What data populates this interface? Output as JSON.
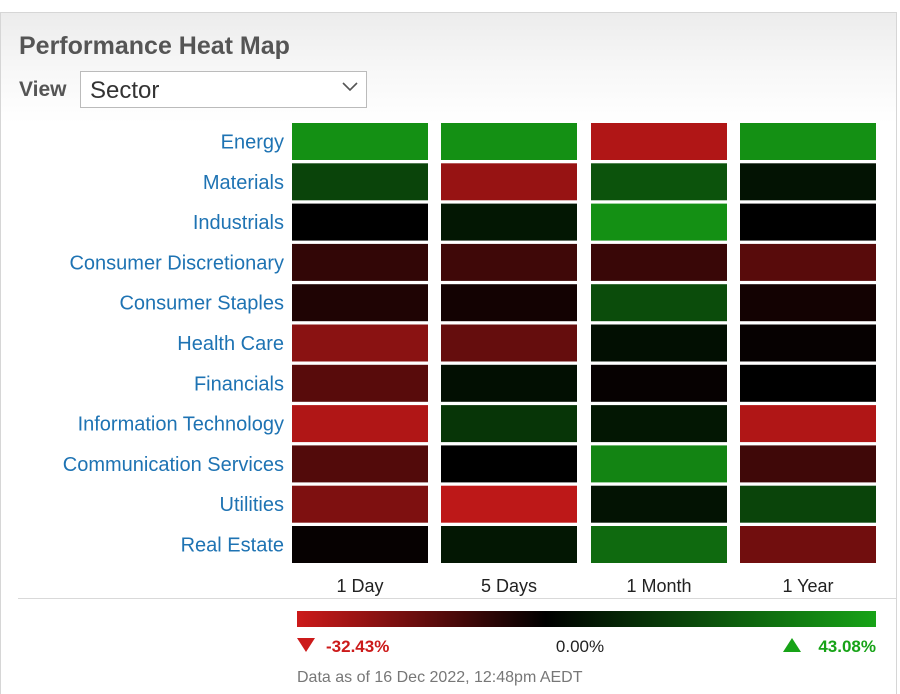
{
  "header": {
    "title": "Performance Heat Map"
  },
  "view": {
    "label": "View",
    "selected": "Sector"
  },
  "chart_data": {
    "type": "heatmap",
    "rows": [
      "Energy",
      "Materials",
      "Industrials",
      "Consumer Discretionary",
      "Consumer Staples",
      "Health Care",
      "Financials",
      "Information Technology",
      "Communication Services",
      "Utilities",
      "Real Estate"
    ],
    "columns": [
      "1 Day",
      "5 Days",
      "1 Month",
      "1 Year"
    ],
    "values": [
      [
        38,
        38,
        -28,
        38
      ],
      [
        18,
        -24,
        22,
        5
      ],
      [
        0,
        6,
        38,
        0
      ],
      [
        -8,
        -10,
        -9,
        -14
      ],
      [
        -5,
        -3,
        20,
        -3
      ],
      [
        -22,
        -16,
        4,
        -1
      ],
      [
        -14,
        4,
        -1,
        0
      ],
      [
        -28,
        14,
        6,
        -28
      ],
      [
        -13,
        0,
        35,
        -10
      ],
      [
        -20,
        -30,
        5,
        18
      ],
      [
        -1,
        6,
        28,
        -18
      ]
    ],
    "scale": {
      "min": -32.43,
      "mid": 0,
      "max": 43.08,
      "min_label": "-32.43%",
      "mid_label": "0.00%",
      "max_label": "43.08%",
      "colors": {
        "negative": "#cc1a1a",
        "neutral": "#000000",
        "positive": "#17a317"
      }
    },
    "footnote": "Data as of 16 Dec 2022, 12:48pm AEDT"
  }
}
